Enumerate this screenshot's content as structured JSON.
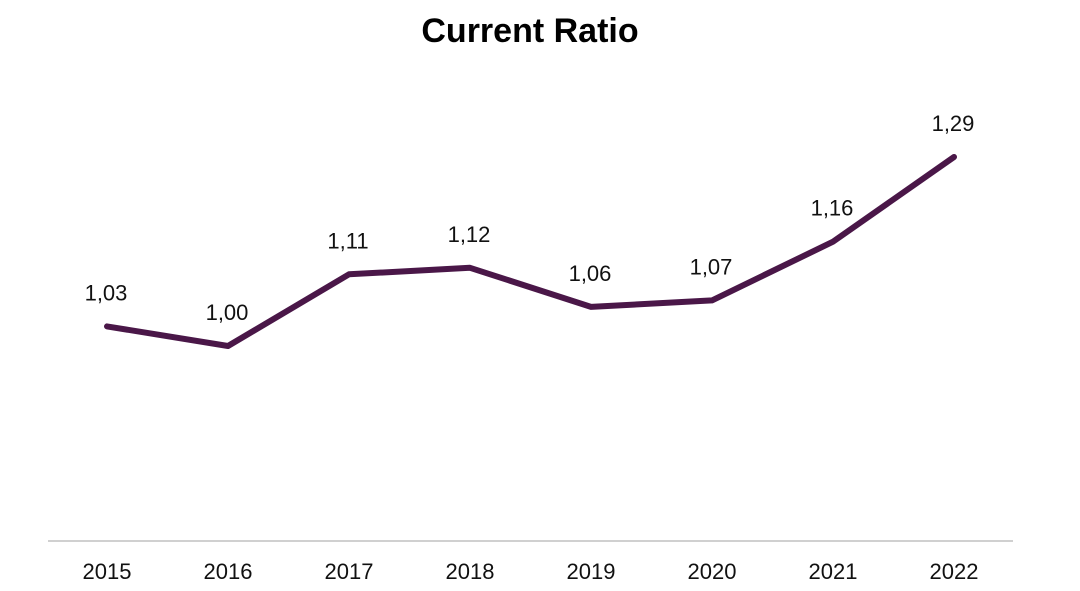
{
  "chart_data": {
    "type": "line",
    "title": "Current Ratio",
    "xlabel": "",
    "ylabel": "",
    "categories": [
      "2015",
      "2016",
      "2017",
      "2018",
      "2019",
      "2020",
      "2021",
      "2022"
    ],
    "series": [
      {
        "values": [
          1.03,
          1.0,
          1.11,
          1.12,
          1.06,
          1.07,
          1.16,
          1.29
        ],
        "data_labels": [
          "1,03",
          "1,00",
          "1,11",
          "1,12",
          "1,06",
          "1,07",
          "1,16",
          "1,29"
        ],
        "color": "#4a1748"
      }
    ],
    "grid": false,
    "legend": "none",
    "baseline_color": "#d0d0d0"
  }
}
